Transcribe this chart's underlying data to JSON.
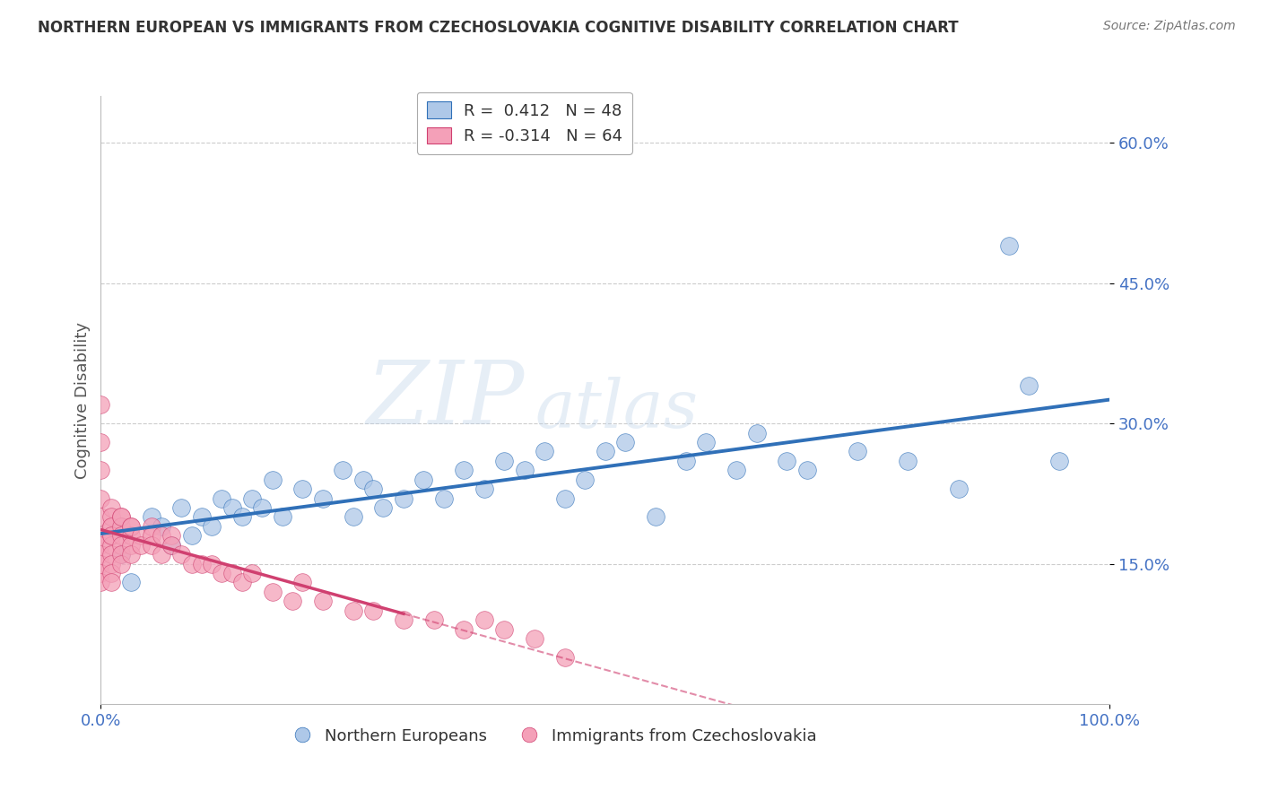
{
  "title": "NORTHERN EUROPEAN VS IMMIGRANTS FROM CZECHOSLOVAKIA COGNITIVE DISABILITY CORRELATION CHART",
  "source": "Source: ZipAtlas.com",
  "ylabel": "Cognitive Disability",
  "xlim": [
    0.0,
    1.0
  ],
  "ylim": [
    0.0,
    0.65
  ],
  "yticks": [
    0.15,
    0.3,
    0.45,
    0.6
  ],
  "ytick_labels": [
    "15.0%",
    "30.0%",
    "45.0%",
    "60.0%"
  ],
  "xtick_labels": [
    "0.0%",
    "100.0%"
  ],
  "xticks": [
    0.0,
    1.0
  ],
  "R_blue": 0.412,
  "N_blue": 48,
  "R_pink": -0.314,
  "N_pink": 64,
  "blue_color": "#aec8e8",
  "pink_color": "#f4a0b8",
  "blue_line_color": "#3070b8",
  "pink_line_color": "#d04070",
  "watermark_big": "ZIP",
  "watermark_small": "atlas",
  "background_color": "#ffffff",
  "grid_color": "#cccccc",
  "blue_scatter_x": [
    0.02,
    0.03,
    0.05,
    0.06,
    0.07,
    0.08,
    0.09,
    0.1,
    0.11,
    0.12,
    0.13,
    0.14,
    0.15,
    0.16,
    0.17,
    0.18,
    0.2,
    0.22,
    0.24,
    0.25,
    0.26,
    0.27,
    0.28,
    0.3,
    0.32,
    0.34,
    0.36,
    0.38,
    0.4,
    0.42,
    0.44,
    0.46,
    0.48,
    0.5,
    0.52,
    0.55,
    0.58,
    0.6,
    0.63,
    0.65,
    0.68,
    0.7,
    0.75,
    0.8,
    0.85,
    0.9,
    0.92,
    0.95
  ],
  "blue_scatter_y": [
    0.16,
    0.13,
    0.2,
    0.19,
    0.17,
    0.21,
    0.18,
    0.2,
    0.19,
    0.22,
    0.21,
    0.2,
    0.22,
    0.21,
    0.24,
    0.2,
    0.23,
    0.22,
    0.25,
    0.2,
    0.24,
    0.23,
    0.21,
    0.22,
    0.24,
    0.22,
    0.25,
    0.23,
    0.26,
    0.25,
    0.27,
    0.22,
    0.24,
    0.27,
    0.28,
    0.2,
    0.26,
    0.28,
    0.25,
    0.29,
    0.26,
    0.25,
    0.27,
    0.26,
    0.23,
    0.49,
    0.34,
    0.26
  ],
  "pink_scatter_x": [
    0.0,
    0.0,
    0.0,
    0.0,
    0.0,
    0.0,
    0.0,
    0.0,
    0.0,
    0.0,
    0.0,
    0.01,
    0.01,
    0.01,
    0.01,
    0.01,
    0.01,
    0.01,
    0.01,
    0.01,
    0.01,
    0.01,
    0.02,
    0.02,
    0.02,
    0.02,
    0.02,
    0.02,
    0.02,
    0.03,
    0.03,
    0.03,
    0.03,
    0.03,
    0.04,
    0.04,
    0.05,
    0.05,
    0.05,
    0.06,
    0.06,
    0.07,
    0.07,
    0.08,
    0.09,
    0.1,
    0.11,
    0.12,
    0.13,
    0.14,
    0.15,
    0.17,
    0.19,
    0.2,
    0.22,
    0.25,
    0.27,
    0.3,
    0.33,
    0.36,
    0.38,
    0.4,
    0.43,
    0.46
  ],
  "pink_scatter_y": [
    0.32,
    0.28,
    0.25,
    0.22,
    0.2,
    0.18,
    0.17,
    0.16,
    0.15,
    0.14,
    0.13,
    0.21,
    0.19,
    0.18,
    0.17,
    0.16,
    0.15,
    0.14,
    0.13,
    0.2,
    0.19,
    0.18,
    0.2,
    0.19,
    0.18,
    0.17,
    0.16,
    0.15,
    0.2,
    0.19,
    0.18,
    0.17,
    0.16,
    0.19,
    0.18,
    0.17,
    0.19,
    0.18,
    0.17,
    0.18,
    0.16,
    0.18,
    0.17,
    0.16,
    0.15,
    0.15,
    0.15,
    0.14,
    0.14,
    0.13,
    0.14,
    0.12,
    0.11,
    0.13,
    0.11,
    0.1,
    0.1,
    0.09,
    0.09,
    0.08,
    0.09,
    0.08,
    0.07,
    0.05
  ],
  "legend_label_blue": "Northern Europeans",
  "legend_label_pink": "Immigrants from Czechoslovakia"
}
